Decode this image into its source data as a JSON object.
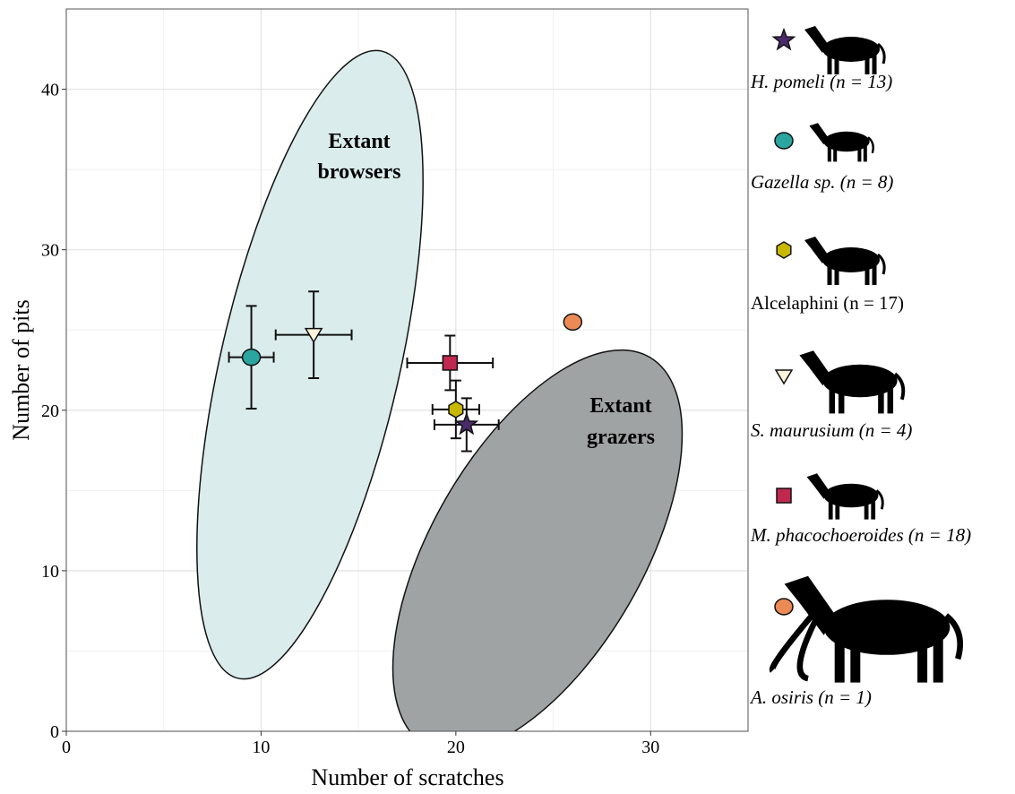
{
  "chart_data": {
    "type": "scatter",
    "xlabel": "Number of scratches",
    "ylabel": "Number of pits",
    "xlim": [
      0,
      35
    ],
    "ylim": [
      0,
      45
    ],
    "xticks": [
      0,
      10,
      20,
      30
    ],
    "yticks": [
      0,
      10,
      20,
      30,
      40
    ],
    "xminorticks": [
      5,
      15,
      25,
      35
    ],
    "yminorticks": [
      5,
      15,
      25,
      35,
      45
    ],
    "grid": true,
    "annotations": [
      "Extant browsers",
      "Extant grazers"
    ],
    "series": [
      {
        "name": "H. pomeli (n = 13)",
        "color": "#4b2a6b",
        "marker": "star",
        "x": [
          20.55
        ],
        "values": [
          19.1
        ],
        "xerr": [
          1.65
        ],
        "yerr": [
          1.65
        ]
      },
      {
        "name": "Gazella sp. (n = 8)",
        "color": "#2ba59f",
        "marker": "circle",
        "x": [
          9.5
        ],
        "values": [
          23.3
        ],
        "xerr": [
          1.15
        ],
        "yerr": [
          3.2
        ]
      },
      {
        "name": "Alcelaphini (n = 17)",
        "color": "#c9b800",
        "marker": "hexagon",
        "x": [
          20.0
        ],
        "values": [
          20.05
        ],
        "xerr": [
          1.2
        ],
        "yerr": [
          1.8
        ]
      },
      {
        "name": "S. maurusium (n = 4)",
        "color": "#fff4dc",
        "marker": "triangle-down",
        "x": [
          12.7
        ],
        "values": [
          24.7
        ],
        "xerr": [
          1.95
        ],
        "yerr": [
          2.7
        ]
      },
      {
        "name": "M. phacochoeroides (n = 18)",
        "color": "#c02850",
        "marker": "square",
        "x": [
          19.7
        ],
        "values": [
          22.95
        ],
        "xerr": [
          2.2
        ],
        "yerr": [
          1.7
        ]
      },
      {
        "name": "A. osiris (n = 1)",
        "color": "#ec8a55",
        "marker": "circle",
        "x": [
          26.0
        ],
        "values": [
          25.5
        ]
      }
    ]
  }
}
